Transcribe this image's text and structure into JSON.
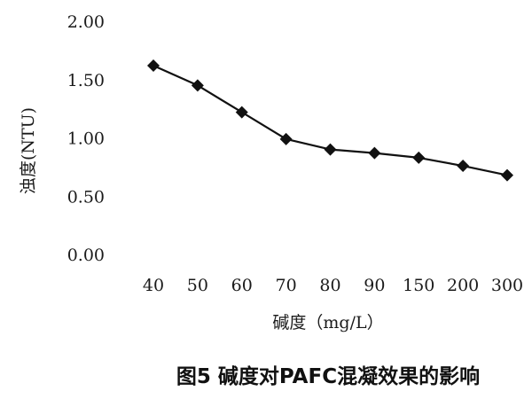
{
  "chart_data": {
    "type": "line",
    "title": "图5 碱度对PAFC混凝效果的影响",
    "xlabel": "碱度（mg/L）",
    "ylabel": "浊度(NTU)",
    "categories": [
      "40",
      "50",
      "60",
      "70",
      "80",
      "90",
      "150",
      "200",
      "300"
    ],
    "series": [
      {
        "values": [
          1.62,
          1.45,
          1.22,
          0.99,
          0.9,
          0.87,
          0.83,
          0.76,
          0.68
        ]
      }
    ],
    "ylim": [
      0,
      2
    ],
    "yticks": [
      "0.00",
      "0.50",
      "1.00",
      "1.50",
      "2.00"
    ],
    "marker": "diamond",
    "grid": false,
    "legend": "none",
    "line_color": "#111111"
  }
}
